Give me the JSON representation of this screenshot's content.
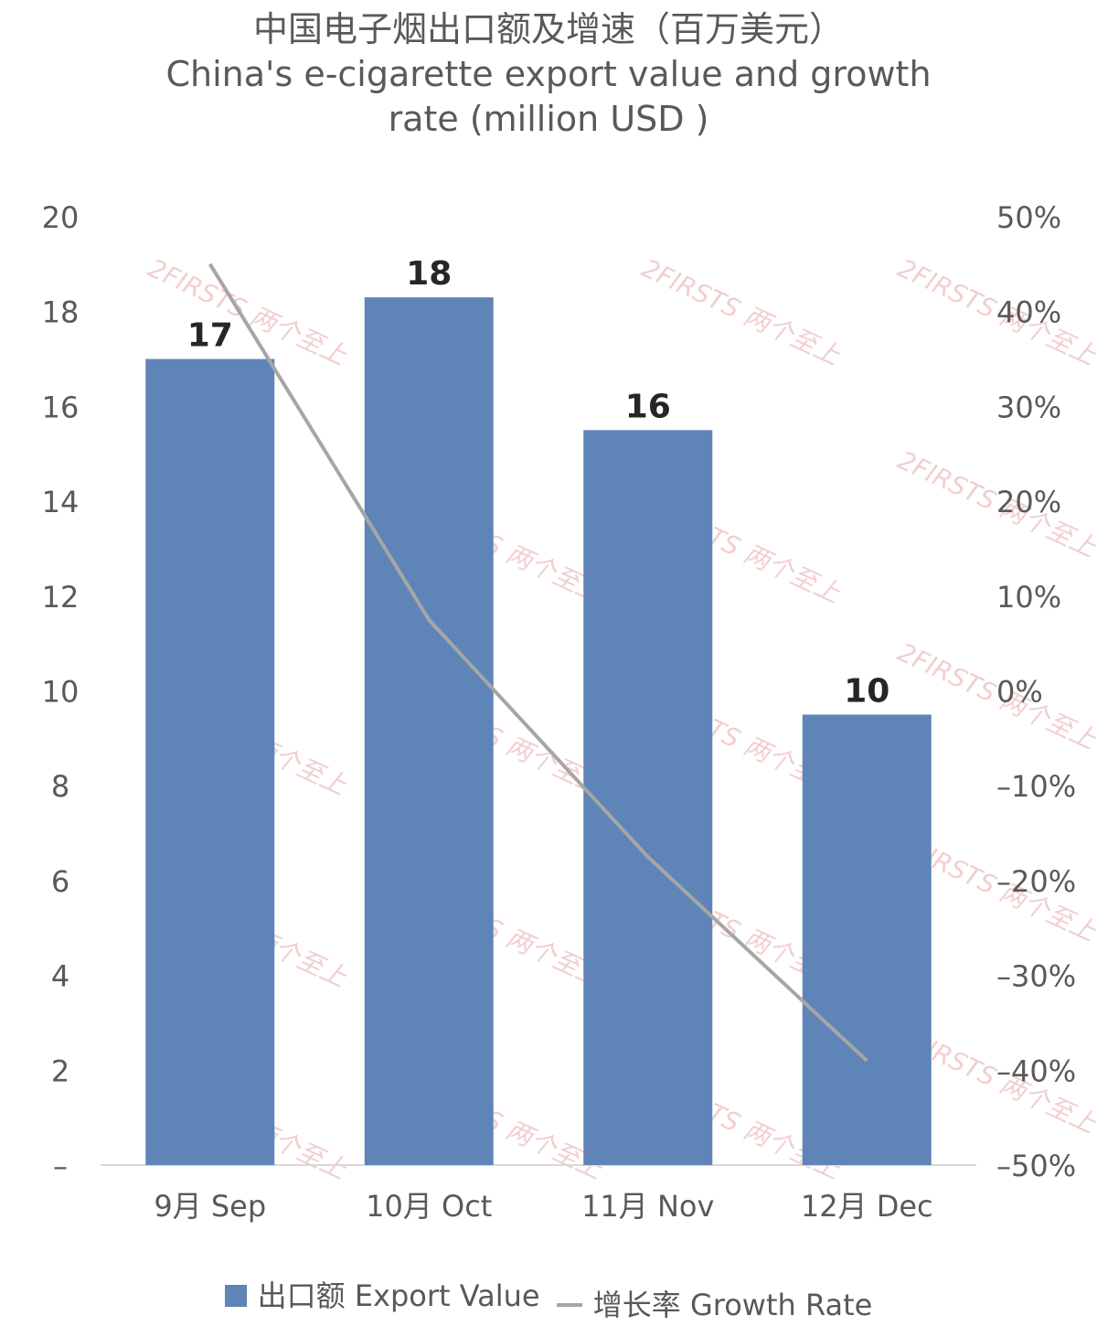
{
  "chart_data": {
    "type": "bar",
    "title": "中国电子烟出口额及增速（百万美元）",
    "subtitle_lines": [
      "China's e-cigarette export value and growth",
      "rate (million USD )"
    ],
    "categories": [
      "9月 Sep",
      "10月 Oct",
      "11月 Nov",
      "12月 Dec"
    ],
    "series": [
      {
        "name": "出口额 Export Value",
        "axis": "left",
        "type": "bar",
        "color": "#5f85b8",
        "values": [
          17.0,
          18.3,
          15.5,
          9.5
        ],
        "data_labels": [
          "17",
          "18",
          "16",
          "10"
        ]
      },
      {
        "name": "增长率 Growth Rate",
        "axis": "right",
        "type": "line",
        "color": "#a6a6a6",
        "values": [
          0.45,
          0.075,
          -0.175,
          -0.39
        ]
      }
    ],
    "y_left": {
      "ylim": [
        0,
        20
      ],
      "tick_labels": [
        "–",
        "2",
        "4",
        "6",
        "8",
        "10",
        "12",
        "14",
        "16",
        "18",
        "20"
      ]
    },
    "y_right": {
      "ylim": [
        -0.5,
        0.5
      ],
      "tick_labels": [
        "–50%",
        "–40%",
        "–30%",
        "–20%",
        "–10%",
        "0%",
        "10%",
        "20%",
        "30%",
        "40%",
        "50%"
      ]
    },
    "grid": false,
    "legend": "bottom",
    "watermark": "2FIRSTS 两个至上"
  }
}
